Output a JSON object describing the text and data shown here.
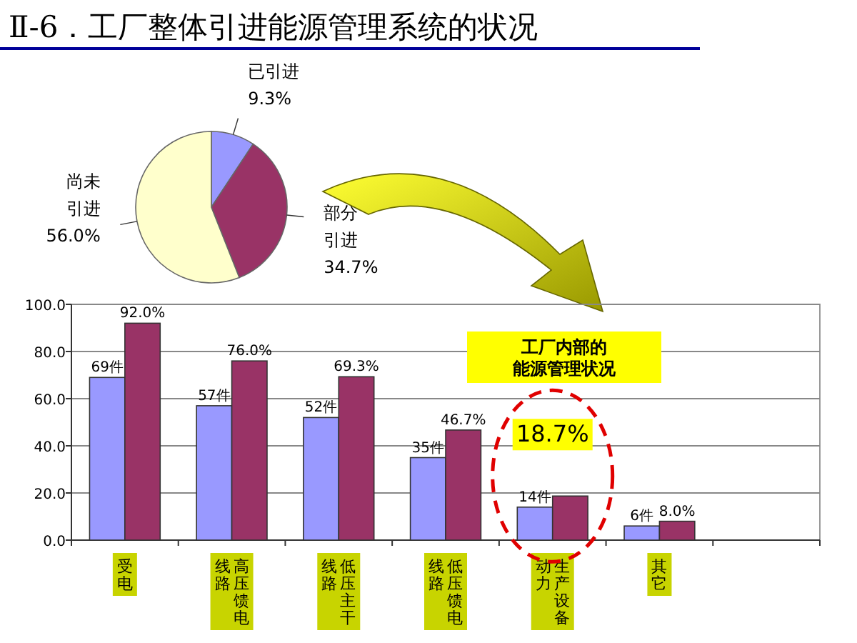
{
  "chart_data": [
    {
      "type": "pie",
      "title": "Ⅱ-6．工厂整体引进能源管理系统的状况",
      "categories": [
        "已引进",
        "部分引进",
        "尚未引进"
      ],
      "values": [
        9.3,
        34.7,
        56.0
      ],
      "colors": [
        "#9999ff",
        "#993366",
        "#ffffcc"
      ],
      "value_labels": [
        "9.3%",
        "34.7%",
        "56.0%"
      ]
    },
    {
      "type": "bar",
      "categories": [
        "受电",
        "高压馈电线路",
        "低压主干线路",
        "低压馈电线路",
        "生产设备动力",
        "其它",
        null
      ],
      "series": [
        {
          "color": "#9999ff",
          "values": [
            69,
            57,
            52,
            35,
            14,
            6,
            null
          ],
          "value_labels": [
            "69件",
            "57件",
            "52件",
            "35件",
            "14件",
            "6件",
            null
          ]
        },
        {
          "color": "#993366",
          "values": [
            92.0,
            76.0,
            69.3,
            46.7,
            18.7,
            8.0,
            null
          ],
          "value_labels": [
            "92.0%",
            "76.0%",
            "69.3%",
            "46.7%",
            null,
            "8.0%",
            null
          ]
        }
      ],
      "ylim": [
        0,
        100
      ],
      "yticks": [
        {
          "value": 0,
          "label": "0.0"
        },
        {
          "value": 20,
          "label": "20.0"
        },
        {
          "value": 40,
          "label": "40.0"
        },
        {
          "value": 60,
          "label": "60.0"
        },
        {
          "value": 80,
          "label": "80.0"
        },
        {
          "value": 100,
          "label": "100.0"
        }
      ],
      "grid": "y",
      "annotations": [
        {
          "text": "18.7%",
          "x": "生产设备动力",
          "y": 18.7
        },
        "工厂内部的能源管理状况"
      ]
    }
  ]
}
